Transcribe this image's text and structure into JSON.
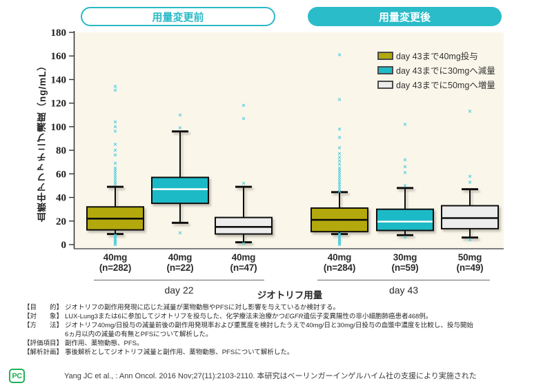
{
  "badge": {
    "text": "PC"
  },
  "citation": {
    "text": "Yang JC et al., : Ann Oncol. 2016 Nov;27(11):2103-2110. 本研究はベーリンガーインゲルハイム社の支援により実施された"
  },
  "footer": {
    "rows": [
      {
        "label": "【目　　的】",
        "parts": [
          {
            "t": "ジオトリフの副作用発現に応じた減量が薬物動態やPFSに対し影響を与えているか検討する。"
          }
        ]
      },
      {
        "label": "【対　　象】",
        "parts": [
          {
            "t": "LUX-Lung3または6に参加してジオトリフを投与した、化学療法未治療かつ"
          },
          {
            "t": "EGFR",
            "i": true
          },
          {
            "t": "遺伝子変異陽性の非小細胞肺癌患者468例。"
          }
        ]
      },
      {
        "label": "【方　　法】",
        "parts": [
          {
            "t": "ジオトリフ40mg/日投与の減量前後の副作用発現率および重篤度を検討したうえで40mg/日と30mg/日投与の血漿中濃度を比較し、投与開始"
          },
          {
            "t": "6ヵ月以内の減量の有無とPFSについて解析した。",
            "br": true
          }
        ]
      },
      {
        "label": "【評価項目】",
        "parts": [
          {
            "t": "副作用、薬物動態、PFS。"
          }
        ]
      },
      {
        "label": "【解析計画】",
        "parts": [
          {
            "t": "事後解析としてジオトリフ減量と副作用、薬物動態、PFSについて解析した。"
          }
        ]
      }
    ]
  },
  "chart_data": {
    "type": "boxplot",
    "ylabel": "血漿中アファチニブ濃度（ng/mL）",
    "xlabel": "ジオトリフ用量",
    "ylim": [
      0,
      180
    ],
    "yticks": [
      0,
      20,
      40,
      60,
      80,
      100,
      120,
      140,
      160,
      180
    ],
    "outlier_marker": "×",
    "colors": {
      "teal": "#2abcc8",
      "olive": "#b3a90d",
      "cyan": "#1fbac7",
      "gray": "#ececec",
      "plot_bg": "#faf6ea",
      "outlier": "#4fccdd"
    },
    "legend": [
      {
        "label": "day 43まで40mg投与",
        "color": "#b3a90d"
      },
      {
        "label": "day 43までに30mgへ減量",
        "color": "#1fbac7"
      },
      {
        "label": "day 43までに50mgへ増量",
        "color": "#ececec"
      }
    ],
    "groups": [
      {
        "header": "用量変更前",
        "day_label": "day 22",
        "boxes": [
          {
            "dose": "40mg",
            "n": "(n=282)",
            "color": "#b3a90d",
            "median_color": "#111111",
            "low": 9,
            "q1": 12.5,
            "median": 22,
            "q3": 32,
            "high": 49,
            "outliers_high": [
              134,
              131,
              104,
              100,
              96,
              85,
              80,
              76,
              69,
              65,
              63,
              61,
              59,
              57,
              55,
              53,
              51
            ],
            "outliers_low": [
              8,
              7,
              6,
              5,
              4,
              3,
              2,
              1,
              0
            ]
          },
          {
            "dose": "40mg",
            "n": "(n=22)",
            "color": "#1fbac7",
            "median_color": "#ffffff",
            "low": 18.5,
            "q1": 35,
            "median": 47,
            "q3": 57,
            "high": 96,
            "outliers_high": [
              110,
              99
            ],
            "outliers_low": [
              10
            ]
          },
          {
            "dose": "40mg",
            "n": "(n=47)",
            "color": "#ececec",
            "median_color": "#111111",
            "low": 2,
            "q1": 9,
            "median": 15,
            "q3": 23,
            "high": 49,
            "outliers_high": [
              118,
              107,
              52
            ],
            "outliers_low": [
              1
            ]
          }
        ]
      },
      {
        "header": "用量変更後",
        "day_label": "day 43",
        "boxes": [
          {
            "dose": "40mg",
            "n": "(n=284)",
            "color": "#b3a90d",
            "median_color": "#111111",
            "low": 9,
            "q1": 11,
            "median": 21,
            "q3": 31,
            "high": 44.5,
            "outliers_high": [
              161,
              123,
              98,
              91,
              82,
              77,
              74,
              71,
              68,
              65,
              63,
              61,
              59,
              57,
              55,
              53,
              51,
              49,
              47,
              45
            ],
            "outliers_low": [
              9,
              8,
              7,
              6,
              5,
              4,
              3,
              2,
              1,
              0
            ]
          },
          {
            "dose": "30mg",
            "n": "(n=59)",
            "color": "#1fbac7",
            "median_color": "#ffffff",
            "low": 8,
            "q1": 12,
            "median": 19.5,
            "q3": 30,
            "high": 48,
            "outliers_high": [
              102,
              72,
              66,
              61,
              50
            ],
            "outliers_low": [
              6
            ]
          },
          {
            "dose": "50mg",
            "n": "(n=49)",
            "color": "#ececec",
            "median_color": "#111111",
            "low": 6,
            "q1": 13.5,
            "median": 22.5,
            "q3": 33,
            "high": 47,
            "outliers_high": [
              113,
              58,
              53
            ],
            "outliers_low": [
              4
            ]
          }
        ]
      }
    ]
  }
}
